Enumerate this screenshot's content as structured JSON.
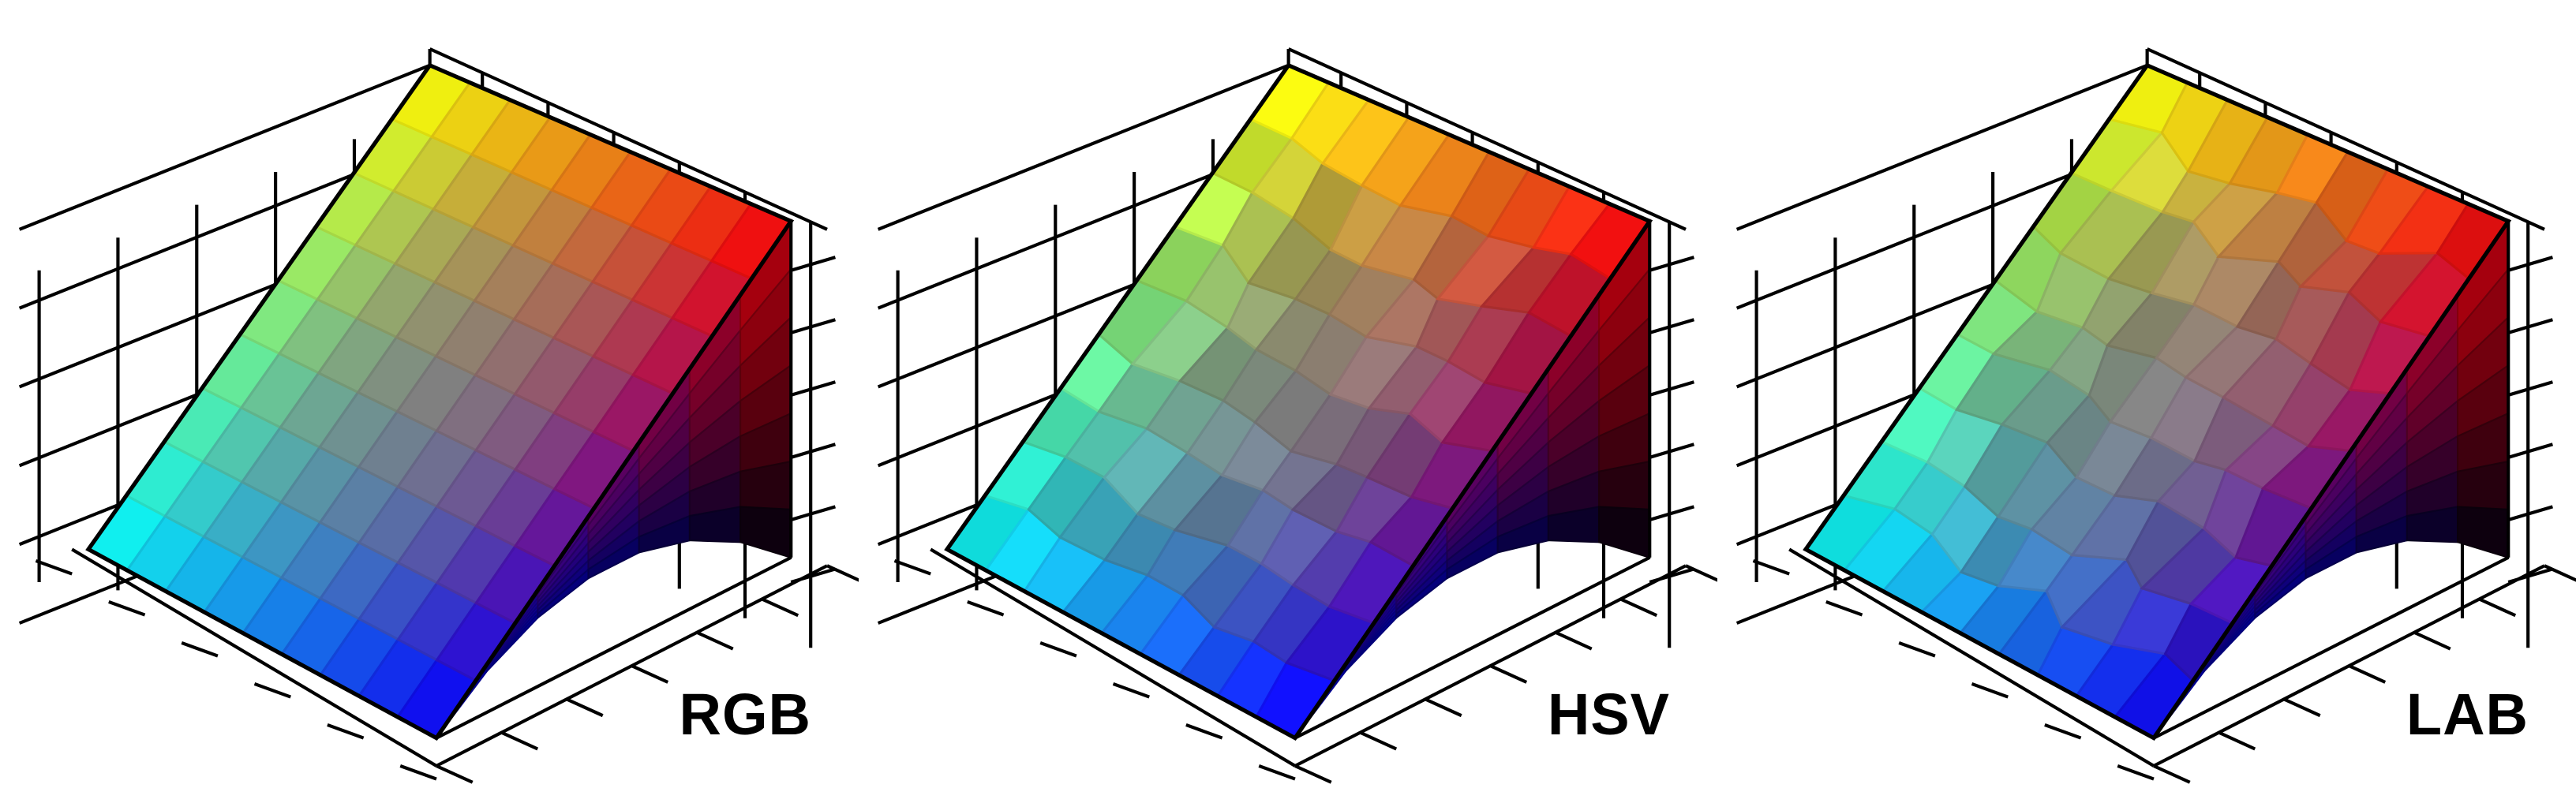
{
  "figure": {
    "panels": [
      {
        "id": "rgb",
        "label": "RGB",
        "variant": "grid",
        "bend": 0,
        "jitter": 0
      },
      {
        "id": "hsv",
        "label": "HSV",
        "variant": "voronoi",
        "bend": 0.22,
        "jitter": 0.3
      },
      {
        "id": "lab",
        "label": "LAB",
        "variant": "voronoi",
        "bend": 0.1,
        "jitter": 0.42
      }
    ]
  },
  "colors": {
    "corner_cyan": "#00ffff",
    "corner_yellow": "#ffff00",
    "corner_red": "#ff0000",
    "corner_blue": "#0000ff",
    "corner_black": "#000000",
    "grid_lines": "#000000"
  }
}
